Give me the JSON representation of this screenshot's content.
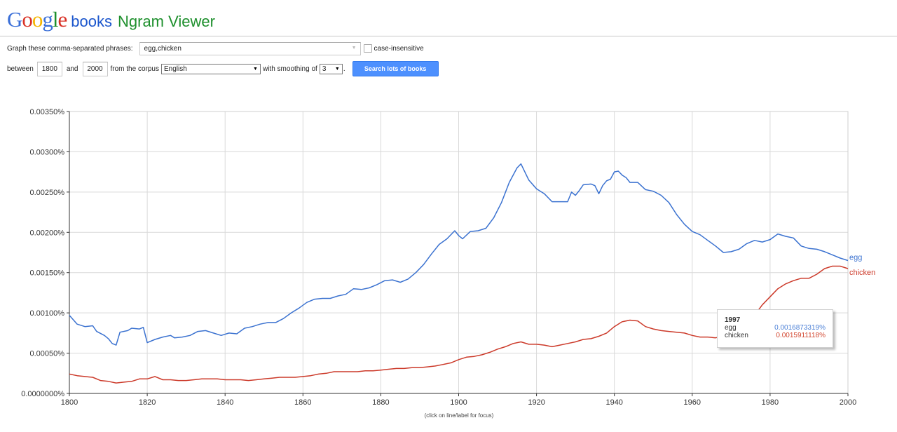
{
  "header": {
    "logo_letters": [
      {
        "ch": "G",
        "color": "#3a6fd8"
      },
      {
        "ch": "o",
        "color": "#d93025"
      },
      {
        "ch": "o",
        "color": "#f4b400"
      },
      {
        "ch": "g",
        "color": "#3a6fd8"
      },
      {
        "ch": "l",
        "color": "#1d8f2c"
      },
      {
        "ch": "e",
        "color": "#d93025"
      }
    ],
    "books": "books",
    "ngram": "Ngram Viewer"
  },
  "form": {
    "phrases_label": "Graph these comma-separated phrases:",
    "phrases_value": "egg,chicken",
    "case_label": "case-insensitive",
    "between_label": "between",
    "start_year": "1800",
    "and_label": "and",
    "end_year": "2000",
    "corpus_label": "from the corpus",
    "corpus_value": "English",
    "smoothing_label": "with smoothing of",
    "smoothing_value": "3",
    "smoothing_suffix": ".",
    "search_button": "Search lots of books"
  },
  "footer_note": "(click on line/label for focus)",
  "tooltip": {
    "year": "1997",
    "rows": [
      {
        "name": "egg",
        "value": "0.0016873319%",
        "color": "#4a7fd6"
      },
      {
        "name": "chicken",
        "value": "0.0015911118%",
        "color": "#d2462f"
      }
    ]
  },
  "chart_data": {
    "type": "line",
    "title": "",
    "xlabel": "",
    "ylabel": "",
    "xlim": [
      1800,
      2000
    ],
    "ylim": [
      0,
      0.0035
    ],
    "x_ticks": [
      1800,
      1820,
      1840,
      1860,
      1880,
      1900,
      1920,
      1940,
      1960,
      1980,
      2000
    ],
    "y_ticks": [
      "0.0000000%",
      "0.00050%",
      "0.00100%",
      "0.00150%",
      "0.00200%",
      "0.00250%",
      "0.00300%",
      "0.00350%"
    ],
    "grid": true,
    "series": [
      {
        "name": "egg",
        "color": "#3b72d0",
        "points": [
          [
            1800,
            0.00097
          ],
          [
            1802,
            0.00086
          ],
          [
            1804,
            0.00083
          ],
          [
            1806,
            0.00084
          ],
          [
            1807,
            0.00077
          ],
          [
            1809,
            0.00072
          ],
          [
            1810,
            0.00068
          ],
          [
            1811,
            0.00062
          ],
          [
            1812,
            0.0006
          ],
          [
            1813,
            0.00076
          ],
          [
            1815,
            0.00078
          ],
          [
            1816,
            0.00081
          ],
          [
            1818,
            0.0008
          ],
          [
            1819,
            0.00082
          ],
          [
            1820,
            0.00063
          ],
          [
            1822,
            0.00067
          ],
          [
            1824,
            0.0007
          ],
          [
            1826,
            0.00072
          ],
          [
            1827,
            0.00069
          ],
          [
            1829,
            0.0007
          ],
          [
            1831,
            0.00072
          ],
          [
            1833,
            0.00077
          ],
          [
            1835,
            0.00078
          ],
          [
            1837,
            0.00075
          ],
          [
            1839,
            0.00072
          ],
          [
            1841,
            0.00075
          ],
          [
            1843,
            0.00074
          ],
          [
            1845,
            0.00081
          ],
          [
            1847,
            0.00083
          ],
          [
            1849,
            0.00086
          ],
          [
            1851,
            0.00088
          ],
          [
            1853,
            0.00088
          ],
          [
            1855,
            0.00093
          ],
          [
            1857,
            0.001
          ],
          [
            1859,
            0.00106
          ],
          [
            1861,
            0.00113
          ],
          [
            1863,
            0.00117
          ],
          [
            1865,
            0.00118
          ],
          [
            1867,
            0.00118
          ],
          [
            1869,
            0.00121
          ],
          [
            1871,
            0.00123
          ],
          [
            1873,
            0.0013
          ],
          [
            1875,
            0.00129
          ],
          [
            1877,
            0.00131
          ],
          [
            1879,
            0.00135
          ],
          [
            1881,
            0.0014
          ],
          [
            1883,
            0.00141
          ],
          [
            1885,
            0.00138
          ],
          [
            1887,
            0.00142
          ],
          [
            1889,
            0.0015
          ],
          [
            1891,
            0.0016
          ],
          [
            1893,
            0.00173
          ],
          [
            1895,
            0.00185
          ],
          [
            1897,
            0.00192
          ],
          [
            1899,
            0.00202
          ],
          [
            1900,
            0.00196
          ],
          [
            1901,
            0.00192
          ],
          [
            1903,
            0.00201
          ],
          [
            1905,
            0.00202
          ],
          [
            1907,
            0.00205
          ],
          [
            1909,
            0.00218
          ],
          [
            1911,
            0.00237
          ],
          [
            1913,
            0.00262
          ],
          [
            1915,
            0.0028
          ],
          [
            1916,
            0.00285
          ],
          [
            1917,
            0.00275
          ],
          [
            1918,
            0.00265
          ],
          [
            1920,
            0.00254
          ],
          [
            1922,
            0.00248
          ],
          [
            1924,
            0.00238
          ],
          [
            1926,
            0.00238
          ],
          [
            1928,
            0.00238
          ],
          [
            1929,
            0.0025
          ],
          [
            1930,
            0.00246
          ],
          [
            1931,
            0.00252
          ],
          [
            1932,
            0.00259
          ],
          [
            1934,
            0.0026
          ],
          [
            1935,
            0.00258
          ],
          [
            1936,
            0.00248
          ],
          [
            1937,
            0.00258
          ],
          [
            1938,
            0.00264
          ],
          [
            1939,
            0.00266
          ],
          [
            1940,
            0.00275
          ],
          [
            1941,
            0.00276
          ],
          [
            1942,
            0.00271
          ],
          [
            1943,
            0.00268
          ],
          [
            1944,
            0.00262
          ],
          [
            1946,
            0.00262
          ],
          [
            1948,
            0.00253
          ],
          [
            1950,
            0.00251
          ],
          [
            1952,
            0.00246
          ],
          [
            1954,
            0.00237
          ],
          [
            1956,
            0.00222
          ],
          [
            1958,
            0.0021
          ],
          [
            1960,
            0.00201
          ],
          [
            1962,
            0.00197
          ],
          [
            1964,
            0.0019
          ],
          [
            1966,
            0.00183
          ],
          [
            1968,
            0.00175
          ],
          [
            1970,
            0.00176
          ],
          [
            1972,
            0.00179
          ],
          [
            1974,
            0.00186
          ],
          [
            1976,
            0.0019
          ],
          [
            1978,
            0.00188
          ],
          [
            1980,
            0.00191
          ],
          [
            1982,
            0.00198
          ],
          [
            1984,
            0.00195
          ],
          [
            1986,
            0.00193
          ],
          [
            1988,
            0.00183
          ],
          [
            1990,
            0.0018
          ],
          [
            1992,
            0.00179
          ],
          [
            1994,
            0.00176
          ],
          [
            1996,
            0.00172
          ],
          [
            1998,
            0.00168
          ],
          [
            2000,
            0.00165
          ]
        ]
      },
      {
        "name": "chicken",
        "color": "#cc3a2a",
        "points": [
          [
            1800,
            0.00024
          ],
          [
            1802,
            0.00022
          ],
          [
            1804,
            0.00021
          ],
          [
            1806,
            0.0002
          ],
          [
            1808,
            0.00016
          ],
          [
            1810,
            0.00015
          ],
          [
            1812,
            0.00013
          ],
          [
            1814,
            0.00014
          ],
          [
            1816,
            0.00015
          ],
          [
            1818,
            0.00018
          ],
          [
            1820,
            0.00018
          ],
          [
            1822,
            0.00021
          ],
          [
            1824,
            0.00017
          ],
          [
            1826,
            0.00017
          ],
          [
            1828,
            0.00016
          ],
          [
            1830,
            0.00016
          ],
          [
            1832,
            0.00017
          ],
          [
            1834,
            0.00018
          ],
          [
            1836,
            0.00018
          ],
          [
            1838,
            0.00018
          ],
          [
            1840,
            0.00017
          ],
          [
            1842,
            0.00017
          ],
          [
            1844,
            0.00017
          ],
          [
            1846,
            0.00016
          ],
          [
            1848,
            0.00017
          ],
          [
            1850,
            0.00018
          ],
          [
            1852,
            0.00019
          ],
          [
            1854,
            0.0002
          ],
          [
            1856,
            0.0002
          ],
          [
            1858,
            0.0002
          ],
          [
            1860,
            0.00021
          ],
          [
            1862,
            0.00022
          ],
          [
            1864,
            0.00024
          ],
          [
            1866,
            0.00025
          ],
          [
            1868,
            0.00027
          ],
          [
            1870,
            0.00027
          ],
          [
            1872,
            0.00027
          ],
          [
            1874,
            0.00027
          ],
          [
            1876,
            0.00028
          ],
          [
            1878,
            0.00028
          ],
          [
            1880,
            0.00029
          ],
          [
            1882,
            0.0003
          ],
          [
            1884,
            0.00031
          ],
          [
            1886,
            0.00031
          ],
          [
            1888,
            0.00032
          ],
          [
            1890,
            0.00032
          ],
          [
            1892,
            0.00033
          ],
          [
            1894,
            0.00034
          ],
          [
            1896,
            0.00036
          ],
          [
            1898,
            0.00038
          ],
          [
            1900,
            0.00042
          ],
          [
            1902,
            0.00045
          ],
          [
            1904,
            0.00046
          ],
          [
            1906,
            0.00048
          ],
          [
            1908,
            0.00051
          ],
          [
            1910,
            0.00055
          ],
          [
            1912,
            0.00058
          ],
          [
            1914,
            0.00062
          ],
          [
            1916,
            0.00064
          ],
          [
            1918,
            0.00061
          ],
          [
            1920,
            0.00061
          ],
          [
            1922,
            0.0006
          ],
          [
            1924,
            0.00058
          ],
          [
            1926,
            0.0006
          ],
          [
            1928,
            0.00062
          ],
          [
            1930,
            0.00064
          ],
          [
            1932,
            0.00067
          ],
          [
            1934,
            0.00068
          ],
          [
            1936,
            0.00071
          ],
          [
            1938,
            0.00075
          ],
          [
            1940,
            0.00083
          ],
          [
            1942,
            0.00089
          ],
          [
            1944,
            0.00091
          ],
          [
            1946,
            0.0009
          ],
          [
            1948,
            0.00083
          ],
          [
            1950,
            0.0008
          ],
          [
            1952,
            0.00078
          ],
          [
            1954,
            0.00077
          ],
          [
            1956,
            0.00076
          ],
          [
            1958,
            0.00075
          ],
          [
            1960,
            0.00072
          ],
          [
            1962,
            0.0007
          ],
          [
            1964,
            0.0007
          ],
          [
            1966,
            0.00069
          ],
          [
            1968,
            0.00071
          ],
          [
            1970,
            0.00074
          ],
          [
            1972,
            0.00078
          ],
          [
            1974,
            0.00085
          ],
          [
            1976,
            0.00097
          ],
          [
            1978,
            0.0011
          ],
          [
            1980,
            0.0012
          ],
          [
            1982,
            0.0013
          ],
          [
            1984,
            0.00136
          ],
          [
            1986,
            0.0014
          ],
          [
            1988,
            0.00143
          ],
          [
            1990,
            0.00143
          ],
          [
            1992,
            0.00148
          ],
          [
            1994,
            0.00155
          ],
          [
            1996,
            0.00158
          ],
          [
            1998,
            0.00158
          ],
          [
            2000,
            0.00155
          ]
        ]
      }
    ]
  }
}
